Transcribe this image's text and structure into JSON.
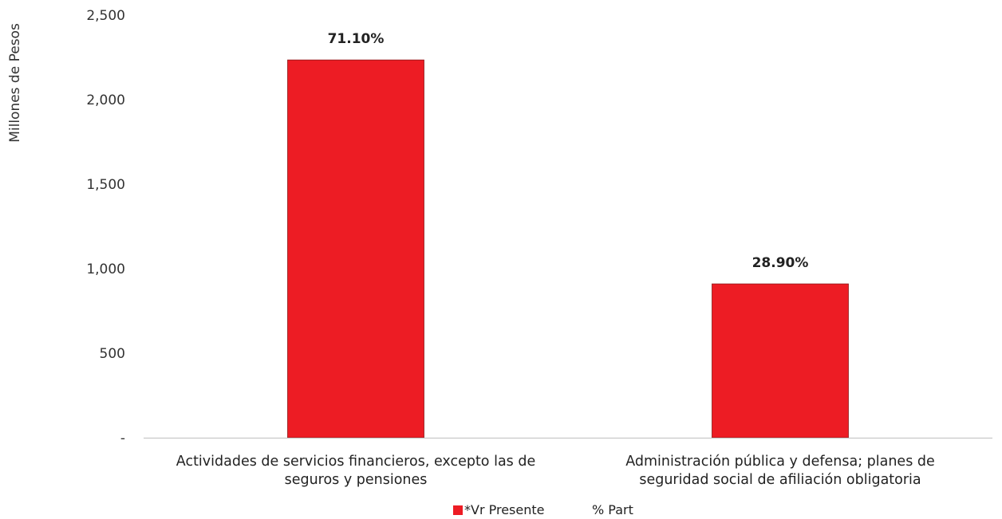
{
  "chart_data": {
    "type": "bar",
    "ylabel": "Millones de Pesos",
    "xlabel": "",
    "ylim": [
      0,
      2500
    ],
    "yticks": [
      {
        "value": 0,
        "label": "-"
      },
      {
        "value": 500,
        "label": "500"
      },
      {
        "value": 1000,
        "label": "1,000"
      },
      {
        "value": 1500,
        "label": "1,500"
      },
      {
        "value": 2000,
        "label": "2,000"
      },
      {
        "value": 2500,
        "label": "2,500"
      }
    ],
    "categories": [
      [
        "Actividades de servicios financieros, excepto las de",
        "seguros y pensiones"
      ],
      [
        "Administración pública y defensa; planes de",
        "seguridad social de afiliación obligatoria"
      ]
    ],
    "series": [
      {
        "name": "*Vr Presente",
        "values": [
          2235,
          910
        ],
        "color": "#ed1c24"
      },
      {
        "name": "% Part",
        "values": [
          71.1,
          28.9
        ]
      }
    ],
    "data_labels": [
      "71.10%",
      "28.90%"
    ],
    "legend": "bottom",
    "grid": false
  }
}
